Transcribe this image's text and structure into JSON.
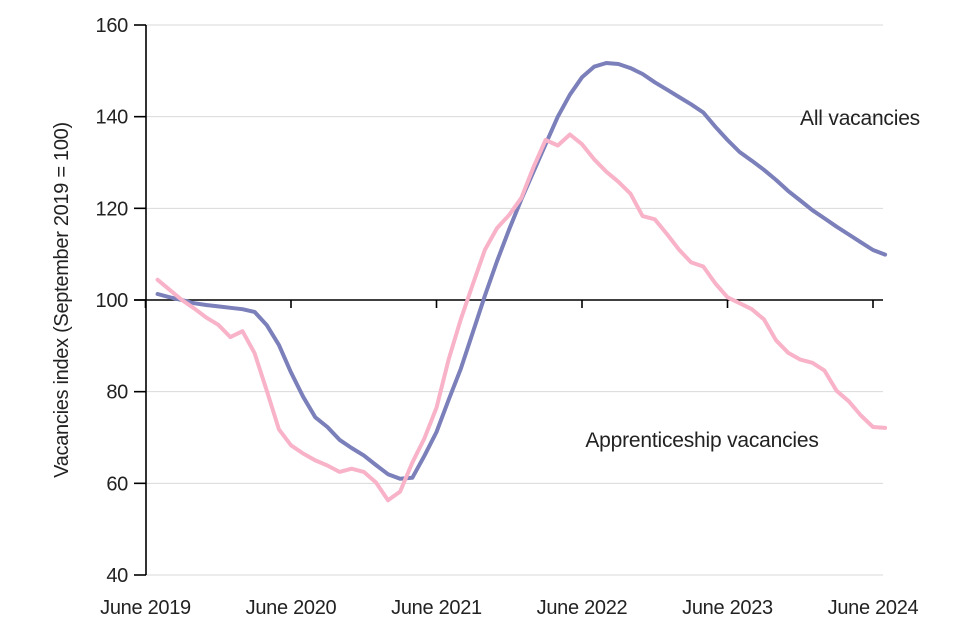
{
  "chart_data": {
    "type": "line",
    "title": "",
    "xlabel": "",
    "ylabel": "Vacancies index (September 2019 = 100)",
    "ylim": [
      40,
      160
    ],
    "y_ticks": [
      40,
      60,
      80,
      100,
      120,
      140,
      160
    ],
    "x_tick_labels": [
      "June 2019",
      "June 2020",
      "June 2021",
      "June 2022",
      "June 2023",
      "June 2024"
    ],
    "baseline_value": 100,
    "grid": "horizontal",
    "grid_color": "#d9d9d9",
    "axis_color": "#000000",
    "legend_position": "inline-labels-on-chart",
    "frequency": "monthly",
    "x_months": [
      "2019-07",
      "2019-08",
      "2019-09",
      "2019-10",
      "2019-11",
      "2019-12",
      "2020-01",
      "2020-02",
      "2020-03",
      "2020-04",
      "2020-05",
      "2020-06",
      "2020-07",
      "2020-08",
      "2020-09",
      "2020-10",
      "2020-11",
      "2020-12",
      "2021-01",
      "2021-02",
      "2021-03",
      "2021-04",
      "2021-05",
      "2021-06",
      "2021-07",
      "2021-08",
      "2021-09",
      "2021-10",
      "2021-11",
      "2021-12",
      "2022-01",
      "2022-02",
      "2022-03",
      "2022-04",
      "2022-05",
      "2022-06",
      "2022-07",
      "2022-08",
      "2022-09",
      "2022-10",
      "2022-11",
      "2022-12",
      "2023-01",
      "2023-02",
      "2023-03",
      "2023-04",
      "2023-05",
      "2023-06",
      "2023-07",
      "2023-08",
      "2023-09",
      "2023-10",
      "2023-11",
      "2023-12",
      "2024-01",
      "2024-02",
      "2024-03",
      "2024-04",
      "2024-05",
      "2024-06",
      "2024-07"
    ],
    "series": [
      {
        "label": "All vacancies",
        "color": "#7b7fba",
        "label_color": "#6e72b6",
        "values": [
          101.3,
          100.6,
          100.0,
          99.3,
          98.9,
          98.6,
          98.3,
          98.0,
          97.4,
          94.5,
          90.2,
          84.2,
          78.9,
          74.4,
          72.3,
          69.5,
          67.7,
          66.1,
          64.0,
          62.0,
          61.0,
          61.2,
          66.0,
          71.2,
          78.2,
          85.0,
          93.0,
          101.0,
          108.5,
          115.5,
          122.0,
          128.0,
          134.0,
          140.0,
          144.8,
          148.6,
          150.9,
          151.7,
          151.5,
          150.6,
          149.3,
          147.5,
          145.9,
          144.3,
          142.7,
          140.9,
          137.8,
          134.9,
          132.3,
          130.4,
          128.4,
          126.2,
          123.8,
          121.7,
          119.6,
          117.8,
          116.0,
          114.3,
          112.6,
          110.9,
          109.9
        ]
      },
      {
        "label": "Apprenticeship vacancies",
        "color": "#f8b3c9",
        "label_color": "#f9b6cc",
        "values": [
          104.4,
          102.2,
          100.0,
          98.2,
          96.2,
          94.6,
          91.9,
          93.2,
          88.4,
          80.2,
          71.8,
          68.3,
          66.5,
          65.0,
          63.9,
          62.5,
          63.2,
          62.5,
          60.2,
          56.3,
          58.2,
          64.5,
          69.8,
          76.5,
          87.0,
          95.8,
          103.5,
          111.0,
          115.7,
          118.6,
          122.3,
          129.0,
          134.9,
          133.7,
          136.1,
          134.0,
          130.7,
          128.0,
          125.8,
          123.2,
          118.3,
          117.6,
          114.4,
          111.0,
          108.2,
          107.3,
          103.6,
          100.6,
          99.3,
          98.0,
          95.8,
          91.2,
          88.5,
          87.0,
          86.3,
          84.6,
          80.2,
          77.9,
          74.8,
          72.3,
          72.1
        ]
      }
    ]
  }
}
